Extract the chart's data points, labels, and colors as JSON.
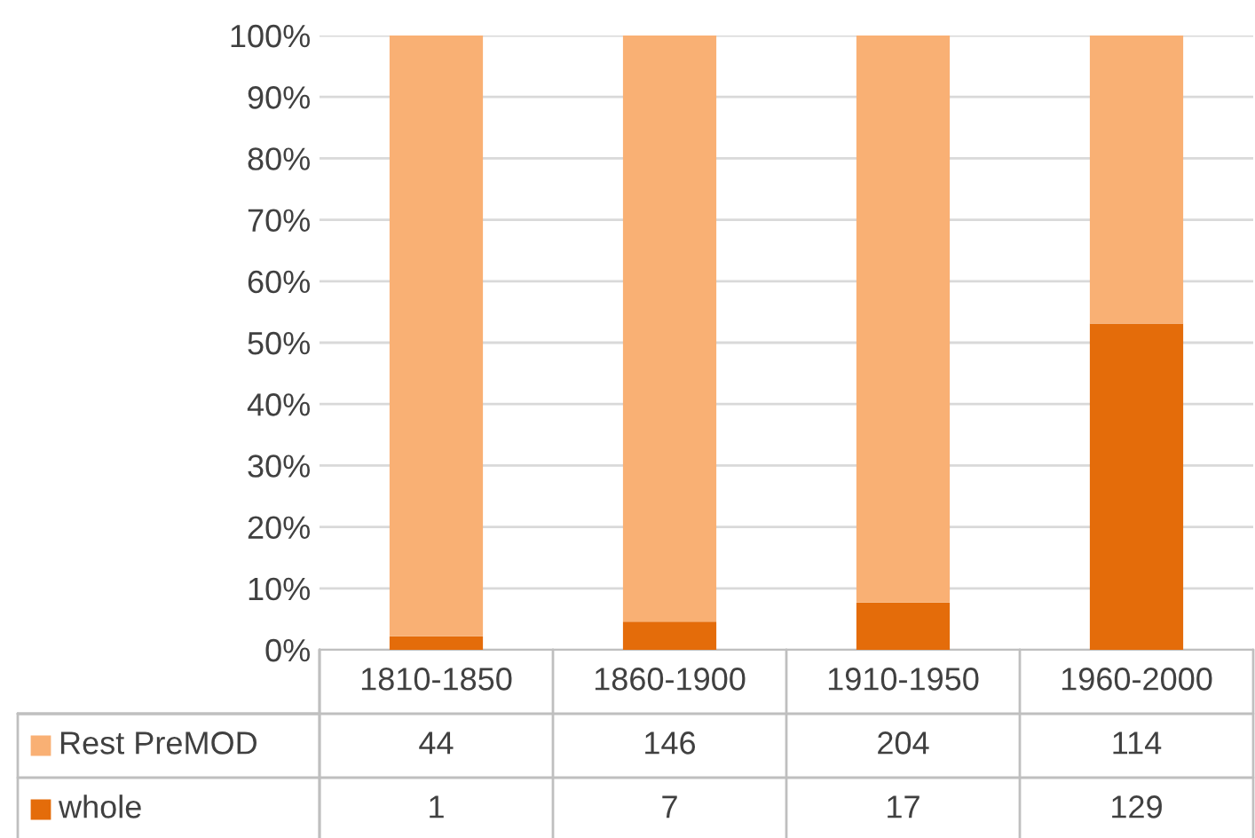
{
  "chart_data": {
    "type": "bar",
    "stacked": true,
    "categories": [
      "1810-1850",
      "1860-1900",
      "1910-1950",
      "1960-2000"
    ],
    "series": [
      {
        "name": "whole",
        "color": "#e46c0a",
        "values": [
          2.2,
          4.6,
          7.7,
          53.1
        ]
      },
      {
        "name": "Rest PreMOD",
        "color": "#f9b074",
        "values": [
          97.8,
          95.4,
          92.3,
          46.9
        ]
      }
    ],
    "annotations": [
      "44",
      "146",
      "204",
      "114",
      "1",
      "7",
      "17",
      "129"
    ],
    "ylim": [
      0,
      100
    ],
    "yticks": [
      {
        "value": 0,
        "label": "0%"
      },
      {
        "value": 10,
        "label": "10%"
      },
      {
        "value": 20,
        "label": "20%"
      },
      {
        "value": 30,
        "label": "30%"
      },
      {
        "value": 40,
        "label": "40%"
      },
      {
        "value": 50,
        "label": "50%"
      },
      {
        "value": 60,
        "label": "60%"
      },
      {
        "value": 70,
        "label": "70%"
      },
      {
        "value": 80,
        "label": "80%"
      },
      {
        "value": 90,
        "label": "90%"
      },
      {
        "value": 100,
        "label": "100%"
      }
    ],
    "grid": "y",
    "legend": "bottom"
  }
}
